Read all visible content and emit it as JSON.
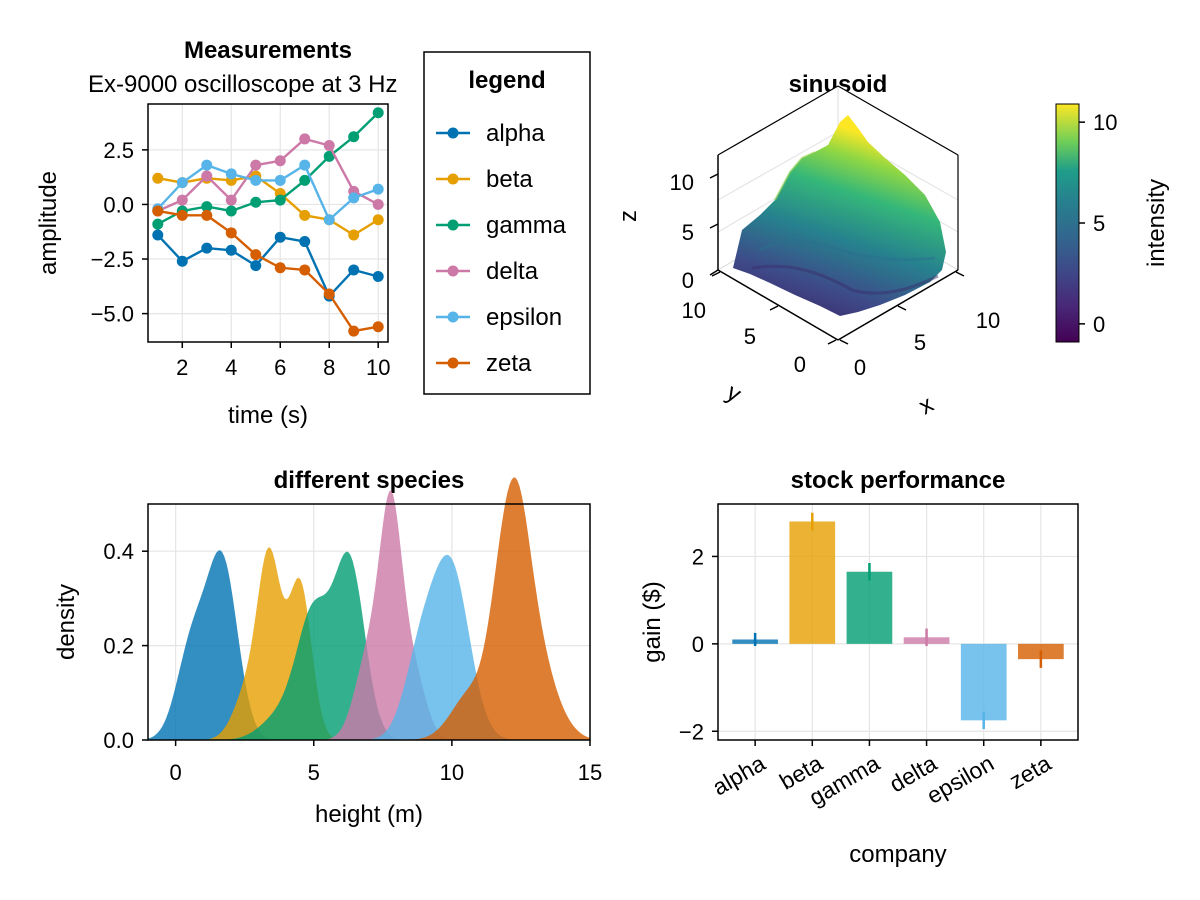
{
  "chart_data": [
    {
      "type": "line",
      "title": "Measurements",
      "subtitle": "Ex-9000 oscilloscope at 3 Hz",
      "xlabel": "time (s)",
      "ylabel": "amplitude",
      "xlim": [
        0.6,
        10.4
      ],
      "ylim": [
        -6.3,
        4.6
      ],
      "x_ticks": [
        2,
        4,
        6,
        8,
        10
      ],
      "y_ticks": [
        2.5,
        0.0,
        -2.5,
        -5.0
      ],
      "y_tick_labels": [
        "2.5",
        "0.0",
        "−2.5",
        "−5.0"
      ],
      "grid": true,
      "x": [
        1,
        2,
        3,
        4,
        5,
        6,
        7,
        8,
        9,
        10
      ],
      "series": [
        {
          "name": "alpha",
          "color": "#0072B2",
          "values": [
            -1.4,
            -2.6,
            -2.0,
            -2.1,
            -2.8,
            -1.5,
            -1.7,
            -4.2,
            -3.0,
            -3.3
          ]
        },
        {
          "name": "beta",
          "color": "#E69F00",
          "values": [
            1.2,
            1.0,
            1.2,
            1.1,
            1.3,
            0.5,
            -0.5,
            -0.7,
            -1.4,
            -0.7
          ]
        },
        {
          "name": "gamma",
          "color": "#009E73",
          "values": [
            -0.9,
            -0.3,
            -0.1,
            -0.3,
            0.1,
            0.2,
            1.1,
            2.2,
            3.1,
            4.2
          ]
        },
        {
          "name": "delta",
          "color": "#CC79A7",
          "values": [
            -0.3,
            0.2,
            1.3,
            0.2,
            1.8,
            2.0,
            3.0,
            2.7,
            0.6,
            0.0
          ]
        },
        {
          "name": "epsilon",
          "color": "#56B4E9",
          "values": [
            -0.2,
            1.0,
            1.8,
            1.4,
            1.1,
            1.1,
            1.8,
            -0.7,
            0.3,
            0.7
          ]
        },
        {
          "name": "zeta",
          "color": "#D55E00",
          "values": [
            -0.3,
            -0.5,
            -0.5,
            -1.3,
            -2.3,
            -2.9,
            -3.0,
            -4.1,
            -5.8,
            -5.6
          ]
        }
      ],
      "legend": {
        "title": "legend",
        "placement": "right",
        "entries": [
          "alpha",
          "beta",
          "gamma",
          "delta",
          "epsilon",
          "zeta"
        ]
      }
    },
    {
      "type": "surface",
      "title": "sinusoid",
      "xlabel": "x",
      "ylabel": "y",
      "zlabel": "z",
      "x_ticks": [
        0,
        5,
        10
      ],
      "y_ticks": [
        0,
        5,
        10
      ],
      "z_ticks": [
        0,
        5,
        10
      ],
      "colorbar": {
        "label": "intensity",
        "ticks": [
          0,
          5,
          10
        ],
        "range": [
          -0.9,
          10.9
        ],
        "colormap": "viridis"
      }
    },
    {
      "type": "area",
      "title": "different species",
      "xlabel": "height (m)",
      "ylabel": "density",
      "xlim": [
        -1,
        15
      ],
      "ylim": [
        0,
        0.5
      ],
      "x_ticks": [
        0,
        5,
        10,
        15
      ],
      "y_ticks": [
        0.0,
        0.2,
        0.4
      ],
      "y_tick_labels": [
        "0.0",
        "0.2",
        "0.4"
      ],
      "grid": true,
      "series": [
        {
          "color": "#0072B2",
          "peaks": [
            [
              1.7,
              0.37,
              0.55
            ],
            [
              0.6,
              0.2,
              0.55
            ]
          ]
        },
        {
          "color": "#E69F00",
          "peaks": [
            [
              3.4,
              0.37,
              0.42
            ],
            [
              4.5,
              0.33,
              0.42
            ],
            [
              2.6,
              0.1,
              0.5
            ]
          ]
        },
        {
          "color": "#009E73",
          "peaks": [
            [
              6.3,
              0.37,
              0.55
            ],
            [
              5.0,
              0.26,
              0.6
            ],
            [
              3.8,
              0.05,
              0.7
            ]
          ]
        },
        {
          "color": "#CC79A7",
          "peaks": [
            [
              7.8,
              0.45,
              0.4
            ],
            [
              7.0,
              0.18,
              0.5
            ],
            [
              8.6,
              0.14,
              0.45
            ]
          ]
        },
        {
          "color": "#56B4E9",
          "peaks": [
            [
              10.0,
              0.35,
              0.65
            ],
            [
              8.9,
              0.18,
              0.6
            ]
          ]
        },
        {
          "color": "#D55E00",
          "peaks": [
            [
              11.9,
              0.34,
              0.5
            ],
            [
              12.5,
              0.3,
              0.45
            ],
            [
              13.2,
              0.15,
              0.5
            ],
            [
              10.7,
              0.1,
              0.7
            ],
            [
              14.0,
              0.03,
              0.5
            ]
          ]
        }
      ]
    },
    {
      "type": "bar",
      "title": "stock performance",
      "xlabel": "company",
      "ylabel": "gain ($)",
      "ylim": [
        -2.2,
        3.2
      ],
      "y_ticks": [
        2,
        0,
        -2
      ],
      "y_tick_labels": [
        "2",
        "0",
        "−2"
      ],
      "grid": true,
      "categories": [
        "alpha",
        "beta",
        "gamma",
        "delta",
        "epsilon",
        "zeta"
      ],
      "values": [
        0.1,
        2.8,
        1.65,
        0.15,
        -1.75,
        -0.35
      ],
      "errors": [
        0.15,
        0.2,
        0.2,
        0.2,
        0.2,
        0.2
      ],
      "colors": [
        "#0072B2",
        "#E69F00",
        "#009E73",
        "#CC79A7",
        "#56B4E9",
        "#D55E00"
      ]
    }
  ]
}
